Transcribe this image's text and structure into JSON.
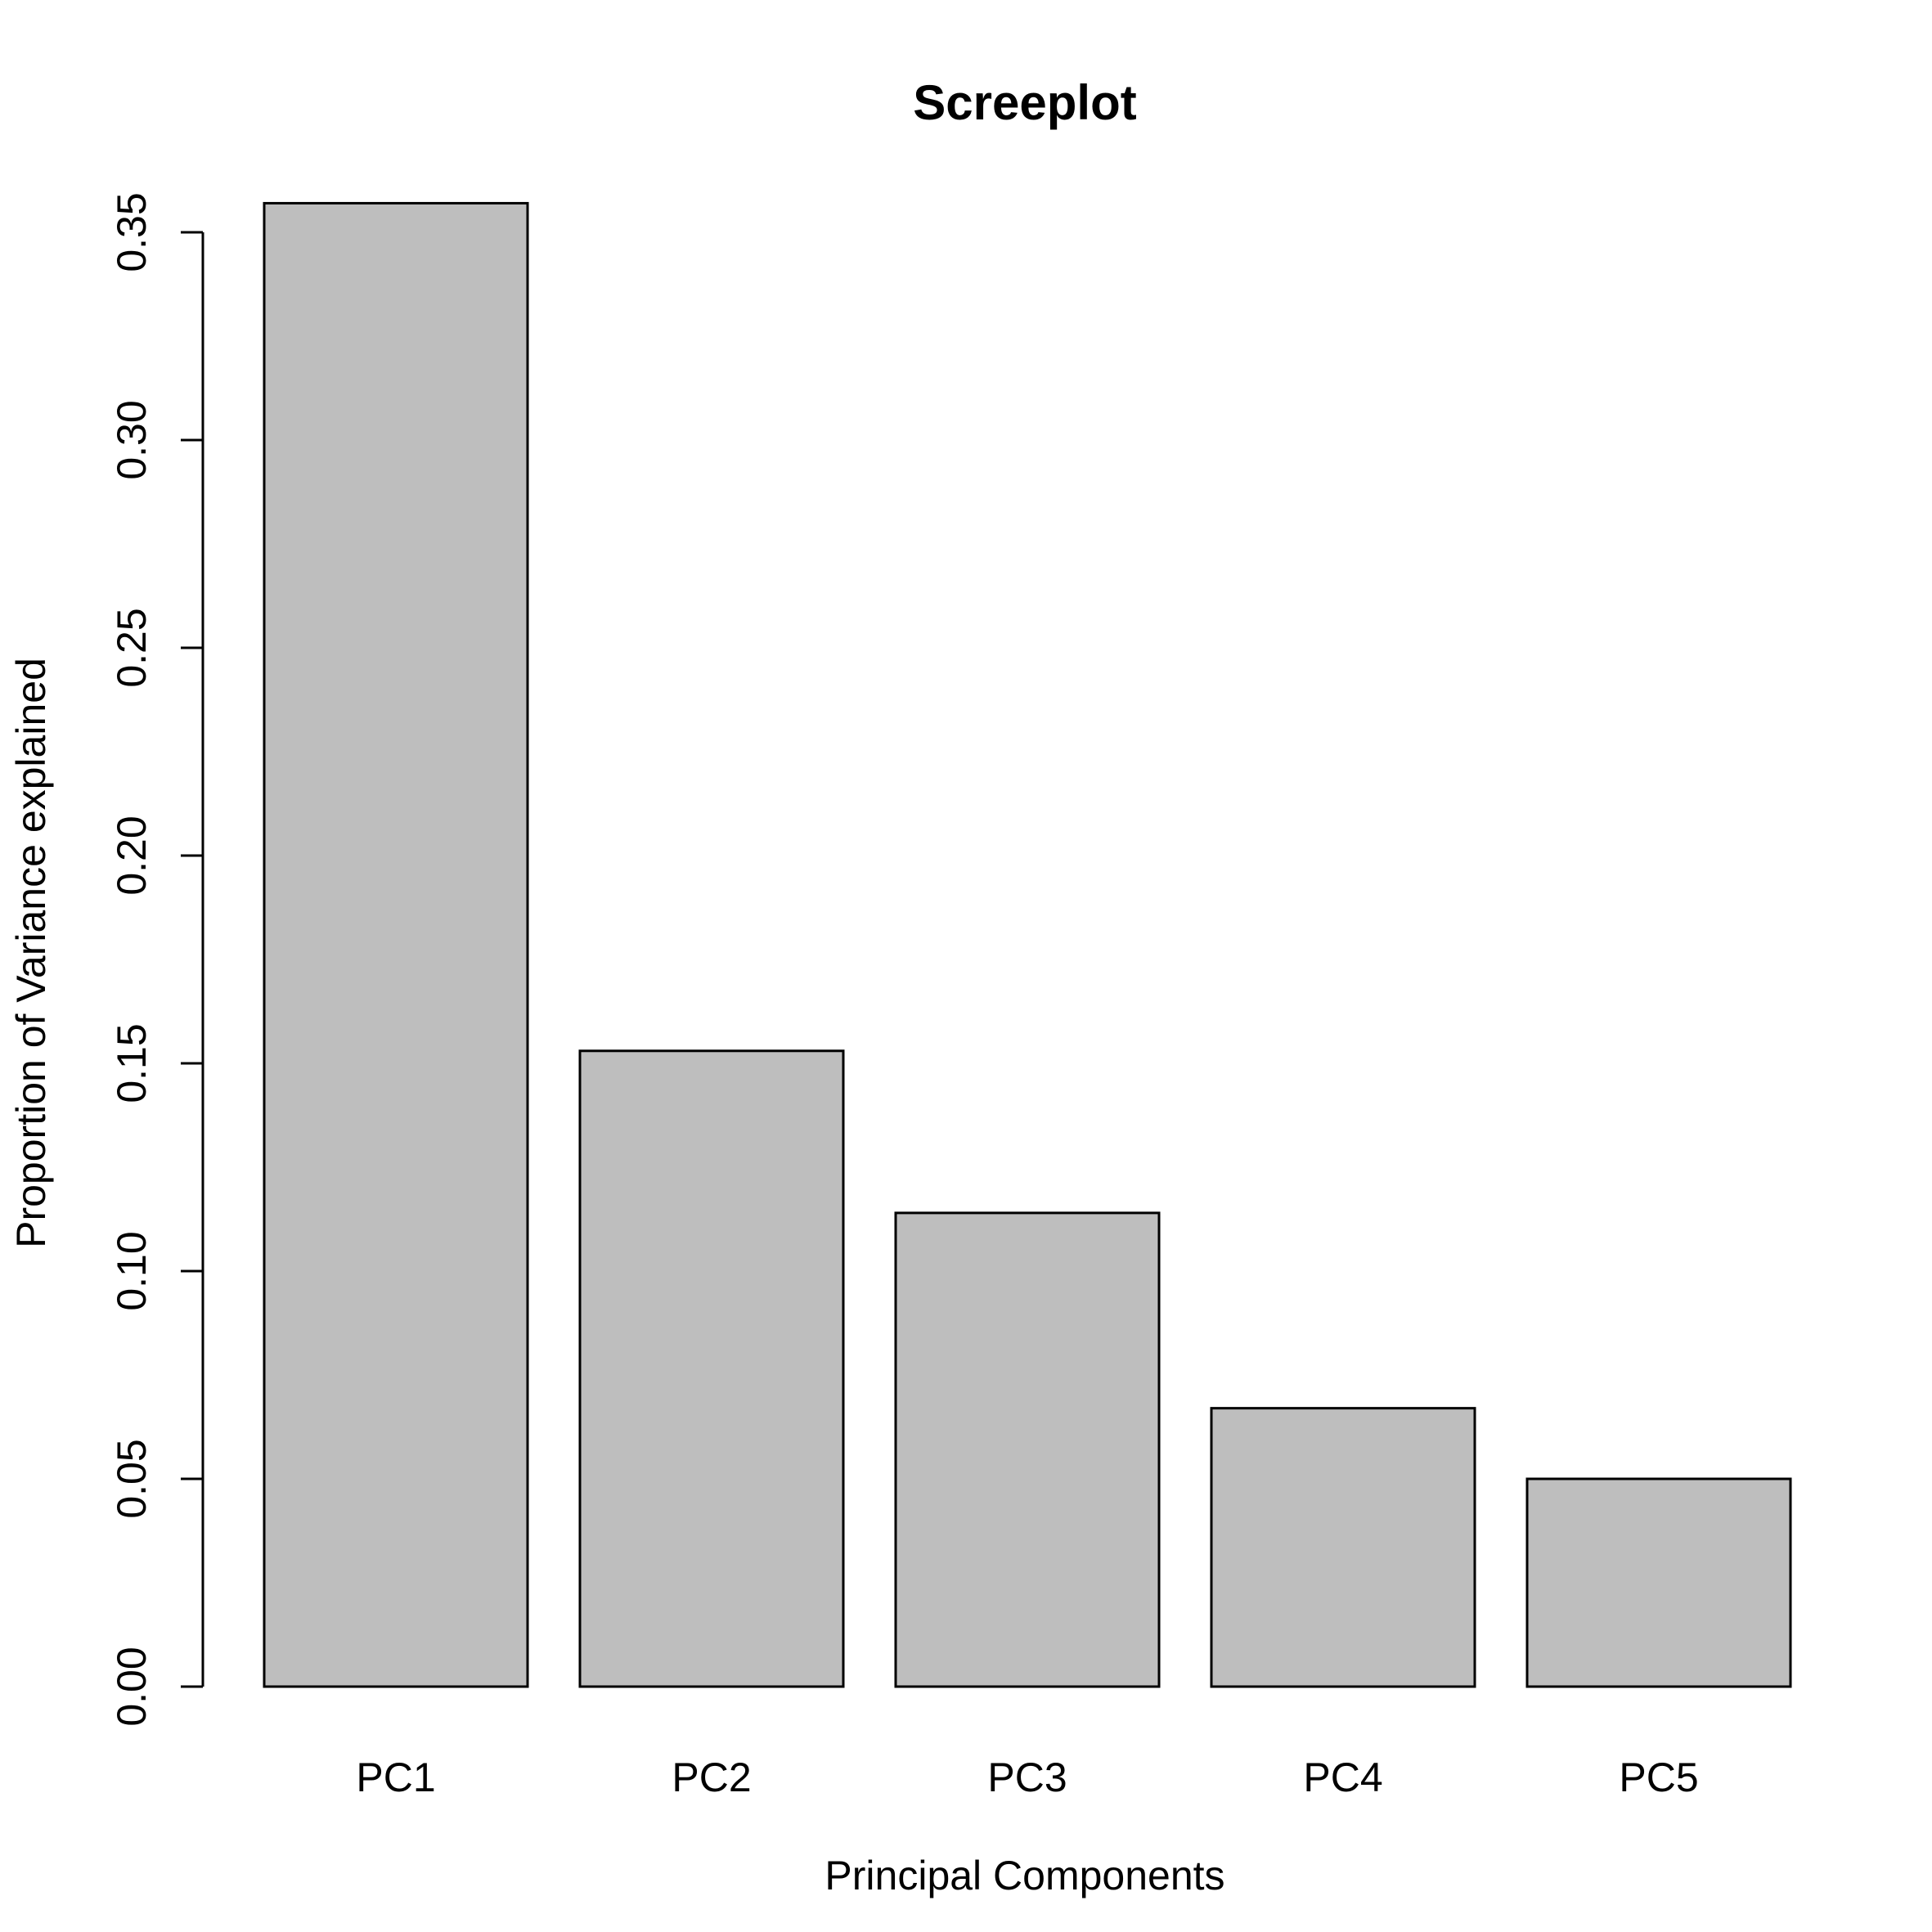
{
  "chart_data": {
    "type": "bar",
    "title": "Screeplot",
    "xlabel": "Principal Components",
    "ylabel": "Proportion of Variance explained",
    "categories": [
      "PC1",
      "PC2",
      "PC3",
      "PC4",
      "PC5"
    ],
    "values": [
      0.357,
      0.153,
      0.114,
      0.067,
      0.05
    ],
    "ylim": [
      0,
      0.35
    ],
    "yticks": [
      "0.00",
      "0.05",
      "0.10",
      "0.15",
      "0.20",
      "0.25",
      "0.30",
      "0.35"
    ],
    "grid": false,
    "bar_color": "#bebebe"
  }
}
